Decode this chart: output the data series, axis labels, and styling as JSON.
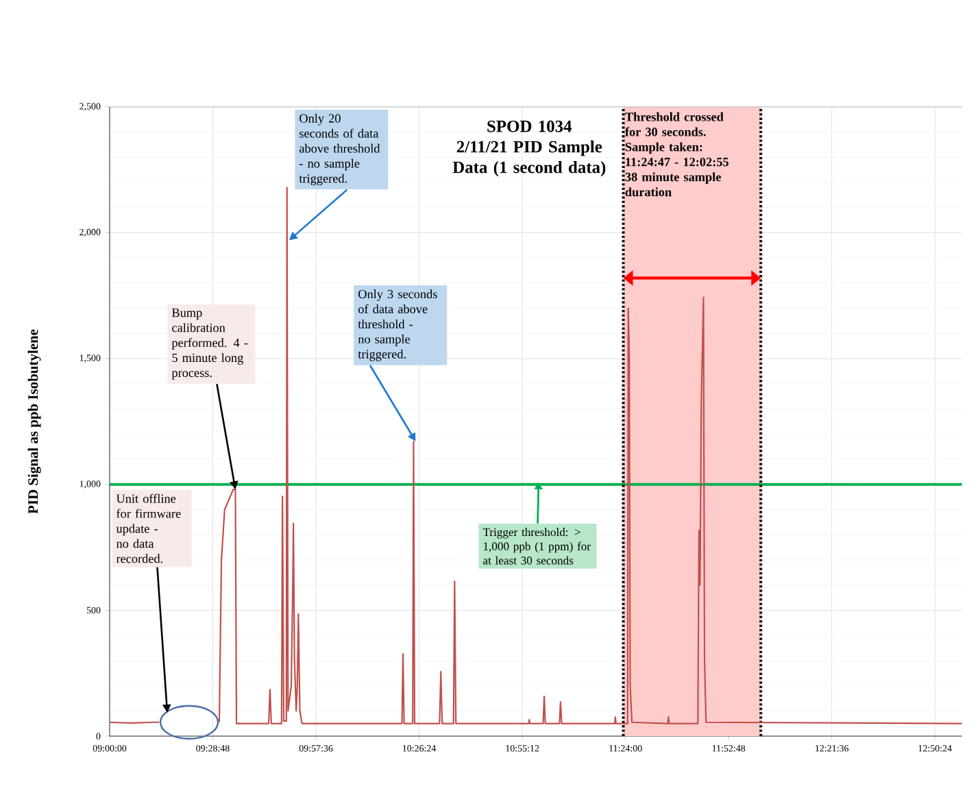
{
  "chart_data": {
    "type": "line",
    "title": "SPOD 1034",
    "subtitle": "2/11/21 PID Sample Data (1 second data)",
    "ylabel": "PID Signal as ppb Isobutylene",
    "x": [
      9.0,
      9.1,
      9.2,
      9.23,
      9.37,
      9.51,
      9.52,
      9.535,
      9.575,
      9.585,
      9.59,
      9.74,
      9.746,
      9.752,
      9.8,
      9.804,
      9.81,
      9.822,
      9.825,
      9.83,
      9.845,
      9.852,
      9.855,
      9.86,
      9.868,
      9.873,
      9.878,
      9.885,
      9.895,
      10.36,
      10.365,
      10.37,
      10.41,
      10.414,
      10.419,
      10.535,
      10.541,
      10.547,
      10.6,
      10.605,
      10.611,
      10.95,
      10.952,
      10.955,
      11.017,
      11.022,
      11.027,
      11.093,
      11.098,
      11.103,
      11.35,
      11.353,
      11.356,
      11.41,
      11.413,
      11.418,
      11.422,
      11.43,
      11.597,
      11.6,
      11.603,
      11.737,
      11.742,
      11.747,
      11.753,
      11.763,
      11.768,
      11.775,
      12.965
    ],
    "series": [
      {
        "color": "#c0504d",
        "values": [
          55,
          52,
          55,
          55,
          null,
          55,
          700,
          900,
          980,
          980,
          50,
          50,
          185,
          50,
          50,
          953,
          60,
          60,
          2180,
          100,
          200,
          600,
          845,
          300,
          100,
          200,
          485,
          100,
          50,
          50,
          327,
          50,
          50,
          1171,
          50,
          50,
          256,
          50,
          50,
          615,
          50,
          50,
          65,
          50,
          50,
          158,
          50,
          50,
          136,
          50,
          50,
          76,
          50,
          50,
          1700,
          1500,
          200,
          55,
          50,
          76,
          50,
          50,
          817,
          600,
          1329,
          1743,
          300,
          55,
          50
        ]
      }
    ],
    "xlim": [
      9.0,
      12.965
    ],
    "ylim": [
      0,
      2500
    ],
    "xticks": [
      {
        "value": 9.0,
        "label": "09:00:00"
      },
      {
        "value": 9.48,
        "label": "09:28:48"
      },
      {
        "value": 9.96,
        "label": "09:57:36"
      },
      {
        "value": 10.44,
        "label": "10:26:24"
      },
      {
        "value": 10.92,
        "label": "10:55:12"
      },
      {
        "value": 11.4,
        "label": "11:24:00"
      },
      {
        "value": 11.88,
        "label": "11:52:48"
      },
      {
        "value": 12.36,
        "label": "12:21:36"
      },
      {
        "value": 12.84,
        "label": "12:50:24"
      }
    ],
    "yticks": [
      0,
      {
        "value": 500,
        "label": "500"
      },
      {
        "value": 1000,
        "label": "1,000"
      },
      {
        "value": 1500,
        "label": "1,500"
      },
      {
        "value": 2000,
        "label": "2,000"
      },
      {
        "value": 2500,
        "label": "2,500"
      }
    ],
    "grid": true,
    "ref_lines": [
      {
        "axis": "y",
        "value": 1000,
        "label": "Trigger threshold: > 1,000 ppb (1 ppm) for at least 30 seconds",
        "color": "#00b050"
      },
      {
        "axis": "x",
        "value": 11.39,
        "color": "#000000",
        "line_style": "dotted"
      },
      {
        "axis": "x",
        "value": 12.03,
        "color": "#000000",
        "line_style": "dotted"
      }
    ],
    "bands": [
      {
        "axis": "x",
        "from": 11.39,
        "to": 12.03,
        "label": "Threshold crossed for 30 seconds. Sample taken: 11:24:47 - 12:02:55 38 minute sample duration",
        "color": "#ffcccc"
      }
    ],
    "annotations": [
      {
        "text": "Only 20 seconds of data above threshold - no sample triggered.",
        "x": 9.825,
        "y": 1970
      },
      {
        "text": "Only 3 seconds of data above threshold - no sample triggered.",
        "x": 10.414,
        "y": 1171
      },
      {
        "text": "Bump calibration performed. 4 - 5 minute long process.",
        "x": 9.575,
        "y": 980
      },
      "Unit offline for firmware update - no data recorded."
    ]
  }
}
